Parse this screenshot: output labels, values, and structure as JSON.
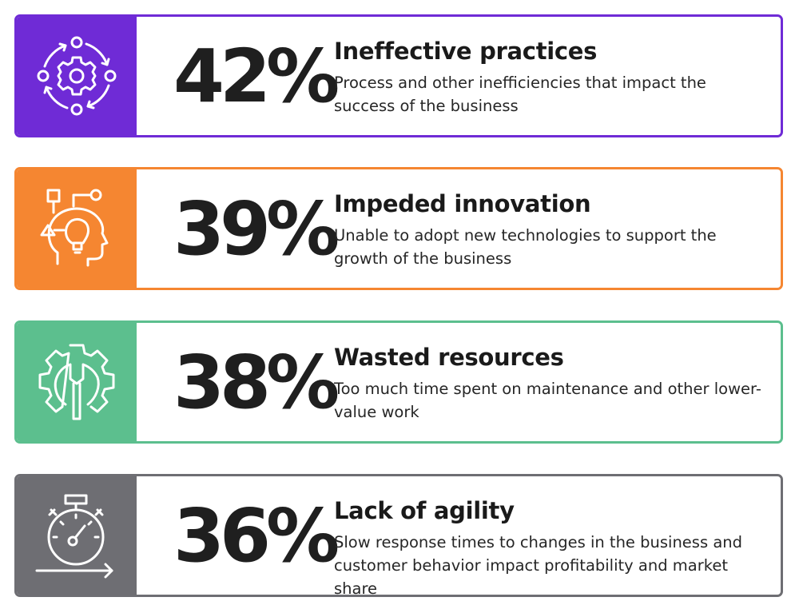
{
  "cards": [
    {
      "percent": "42%",
      "title": "Ineffective practices",
      "description": "Process and other inefficiencies that impact the success of the business",
      "color": "#6f2bd6",
      "icon": "process-cycle-gear-icon"
    },
    {
      "percent": "39%",
      "title": "Impeded innovation",
      "description": "Unable to adopt new technologies to support the growth of the business",
      "color": "#f58631",
      "icon": "head-lightbulb-icon"
    },
    {
      "percent": "38%",
      "title": "Wasted resources",
      "description": "Too much time spent on maintenance and other lower-value work",
      "color": "#5cbf8e",
      "icon": "gear-wrench-icon"
    },
    {
      "percent": "36%",
      "title": "Lack of agility",
      "description": "Slow response times to changes in the business and customer behavior impact profitability and market share",
      "color": "#6e6e73",
      "icon": "stopwatch-icon"
    }
  ]
}
